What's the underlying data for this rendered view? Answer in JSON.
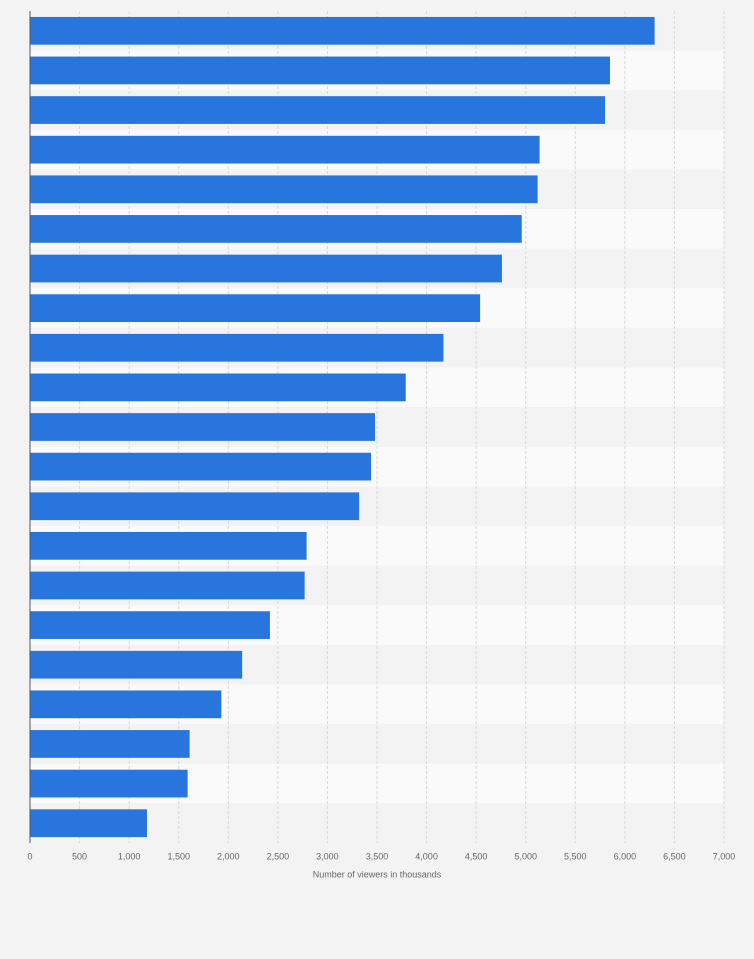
{
  "chart_data": {
    "type": "bar",
    "orientation": "horizontal",
    "x_label": "Number of viewers in thousands",
    "categories": [
      null,
      null,
      null,
      null,
      null,
      null,
      null,
      null,
      null,
      null,
      null,
      null,
      null,
      null,
      null,
      null,
      null,
      null,
      null,
      null,
      null
    ],
    "values": [
      6300,
      5850,
      5800,
      5140,
      5120,
      4960,
      4760,
      4540,
      4170,
      3790,
      3480,
      3440,
      3320,
      2790,
      2770,
      2420,
      2140,
      1930,
      1610,
      1590,
      1180
    ],
    "color": "#2876dd",
    "xlim": [
      0,
      7000
    ],
    "xticks": [
      0,
      500,
      {
        "value": 1000,
        "label": "1,000"
      },
      {
        "value": 1500,
        "label": "1,500"
      },
      {
        "value": 2000,
        "label": "2,000"
      },
      {
        "value": 2500,
        "label": "2,500"
      },
      {
        "value": 3000,
        "label": "3,000"
      },
      {
        "value": 3500,
        "label": "3,500"
      },
      {
        "value": 4000,
        "label": "4,000"
      },
      {
        "value": 4500,
        "label": "4,500"
      },
      {
        "value": 5000,
        "label": "5,000"
      },
      {
        "value": 5500,
        "label": "5,500"
      },
      {
        "value": 6000,
        "label": "6,000"
      },
      {
        "value": 6500,
        "label": "6,500"
      },
      {
        "value": 7000,
        "label": "7,000"
      }
    ],
    "grid": true
  }
}
